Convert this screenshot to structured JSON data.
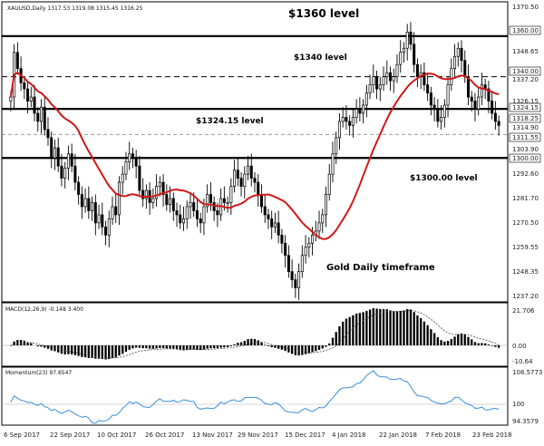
{
  "chart_data": [
    {
      "type": "candlestick",
      "header": "XAUUSD,Daily  1317.53 1319.08 1315.45 1316.25",
      "ylim": [
        1230,
        1376
      ],
      "y_ticks": [
        "1370.50",
        "1360.00",
        "1348.65",
        "1340.00",
        "1337.20",
        "1326.15",
        "1324.15",
        "1318.25",
        "1314.90",
        "1311.55",
        "1303.90",
        "1300.00",
        "1292.60",
        "1281.70",
        "1270.50",
        "1259.55",
        "1248.35",
        "1237.20"
      ],
      "highlighted_ticks": [
        "1360.00",
        "1340.00",
        "1324.15",
        "1318.25",
        "1311.55",
        "1300.00"
      ],
      "x_ticks": [
        "6 Sep 2017",
        "22 Sep 2017",
        "10 Oct 2017",
        "26 Oct 2017",
        "13 Nov 2017",
        "29 Nov 2017",
        "15 Dec 2017",
        "4 Jan 2018",
        "22 Jan 2018",
        "7 Feb 2018",
        "23 Feb 2018"
      ],
      "levels": [
        {
          "value": 1360,
          "style": "solid"
        },
        {
          "value": 1340,
          "style": "dashed"
        },
        {
          "value": 1324.15,
          "style": "solid"
        },
        {
          "value": 1311.55,
          "style": "dashed-gray"
        },
        {
          "value": 1300,
          "style": "solid"
        }
      ],
      "annotations": [
        "$1360  level",
        "$1340 level",
        "$1324.15  level",
        "$1300.00  level",
        "Gold Daily timeframe"
      ],
      "series_closes": [
        1330,
        1352,
        1344,
        1337,
        1334,
        1328,
        1330,
        1322,
        1318,
        1325,
        1314,
        1310,
        1300,
        1305,
        1296,
        1290,
        1295,
        1302,
        1296,
        1288,
        1282,
        1276,
        1280,
        1274,
        1278,
        1268,
        1272,
        1266,
        1262,
        1270,
        1276,
        1272,
        1288,
        1292,
        1298,
        1302,
        1300,
        1296,
        1284,
        1280,
        1284,
        1278,
        1280,
        1286,
        1288,
        1282,
        1277,
        1280,
        1274,
        1272,
        1268,
        1270,
        1276,
        1278,
        1274,
        1270,
        1268,
        1276,
        1282,
        1278,
        1274,
        1272,
        1280,
        1278,
        1278,
        1286,
        1294,
        1290,
        1286,
        1292,
        1296,
        1290,
        1288,
        1282,
        1276,
        1272,
        1270,
        1266,
        1268,
        1262,
        1258,
        1252,
        1244,
        1240,
        1236,
        1244,
        1252,
        1256,
        1258,
        1262,
        1264,
        1268,
        1272,
        1282,
        1292,
        1302,
        1310,
        1318,
        1320,
        1318,
        1316,
        1320,
        1324,
        1322,
        1326,
        1332,
        1336,
        1340,
        1334,
        1336,
        1340,
        1342,
        1338,
        1340,
        1346,
        1352,
        1354,
        1362,
        1356,
        1346,
        1340,
        1342,
        1336,
        1332,
        1326,
        1324,
        1318,
        1320,
        1326,
        1336,
        1344,
        1350,
        1354,
        1348,
        1340,
        1330,
        1328,
        1324,
        1330,
        1336,
        1334,
        1328,
        1322,
        1318,
        1316
      ]
    },
    {
      "type": "bar",
      "label": "MACD(12,26,9) -0.148 3.400",
      "y_ticks": [
        "21.706",
        "0.00",
        "-10.64"
      ]
    },
    {
      "type": "line",
      "label": "Momentum(23) 97.6547",
      "y_ticks": [
        "108.5773",
        "100",
        "94.3579"
      ]
    }
  ]
}
